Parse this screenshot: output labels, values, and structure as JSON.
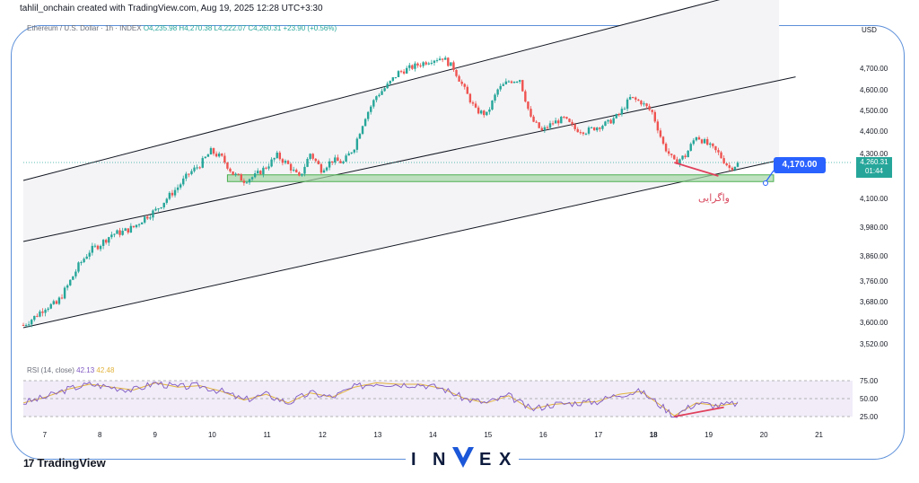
{
  "header": {
    "text": "tahlil_onchain created with TradingView.com, Aug 19, 2025 12:28 UTC+3:30"
  },
  "symbol": {
    "name": "Ethereum / U.S. Dollar · 1h · INDEX",
    "ohlc": "O4,235.98 H4,270.38 L4,222.07 C4,260.31 +23.90 (+0.56%)"
  },
  "currency": "USD",
  "rsi_label": {
    "name": "RSI (14, close)",
    "value1": "42.13",
    "value2": "42.48"
  },
  "callout_price": "4,170.00",
  "last_price": {
    "price": "4,260.31",
    "countdown": "01:44"
  },
  "annotation": "واگرایی",
  "logo": {
    "mark": "17",
    "text": "TradingView"
  },
  "watermark": [
    "I",
    "N",
    "V",
    "E",
    "X"
  ],
  "colors": {
    "up": "#26a69a",
    "down": "#ef5350",
    "channel": "#131722",
    "support": "#a5d6a7",
    "rsi": "#7e57c2",
    "rsi_ma": "#e2b33c",
    "divergence": "#e0405b",
    "callout": "#2962ff"
  },
  "chart_data": {
    "type": "candlestick",
    "x_ticks": [
      "7",
      "8",
      "9",
      "10",
      "11",
      "12",
      "13",
      "14",
      "15",
      "16",
      "17",
      "18",
      "19",
      "20",
      "21"
    ],
    "y_ticks": [
      "4,700.00",
      "4,600.00",
      "4,500.00",
      "4,400.00",
      "4,300.00",
      "4,100.00",
      "3,980.00",
      "3,860.00",
      "3,760.00",
      "3,680.00",
      "3,600.00",
      "3,520.00"
    ],
    "y_tick_values": [
      4700,
      4600,
      4500,
      4400,
      4300,
      4100,
      3980,
      3860,
      3760,
      3680,
      3600,
      3520
    ],
    "close_path": [
      [
        6.6,
        3590
      ],
      [
        6.8,
        3620
      ],
      [
        7.0,
        3660
      ],
      [
        7.2,
        3670
      ],
      [
        7.4,
        3740
      ],
      [
        7.6,
        3820
      ],
      [
        7.8,
        3880
      ],
      [
        8.0,
        3910
      ],
      [
        8.2,
        3950
      ],
      [
        8.4,
        3960
      ],
      [
        8.6,
        3980
      ],
      [
        8.8,
        4020
      ],
      [
        9.0,
        4050
      ],
      [
        9.2,
        4100
      ],
      [
        9.4,
        4150
      ],
      [
        9.6,
        4210
      ],
      [
        9.8,
        4250
      ],
      [
        10.0,
        4310
      ],
      [
        10.2,
        4280
      ],
      [
        10.4,
        4210
      ],
      [
        10.6,
        4180
      ],
      [
        10.8,
        4200
      ],
      [
        11.0,
        4240
      ],
      [
        11.2,
        4290
      ],
      [
        11.4,
        4250
      ],
      [
        11.6,
        4190
      ],
      [
        11.8,
        4300
      ],
      [
        12.0,
        4230
      ],
      [
        12.2,
        4270
      ],
      [
        12.4,
        4260
      ],
      [
        12.6,
        4330
      ],
      [
        12.8,
        4470
      ],
      [
        13.0,
        4570
      ],
      [
        13.2,
        4620
      ],
      [
        13.4,
        4680
      ],
      [
        13.6,
        4700
      ],
      [
        13.8,
        4720
      ],
      [
        14.0,
        4740
      ],
      [
        14.2,
        4750
      ],
      [
        14.4,
        4700
      ],
      [
        14.6,
        4600
      ],
      [
        14.8,
        4500
      ],
      [
        15.0,
        4480
      ],
      [
        15.2,
        4600
      ],
      [
        15.4,
        4640
      ],
      [
        15.6,
        4650
      ],
      [
        15.8,
        4460
      ],
      [
        16.0,
        4400
      ],
      [
        16.2,
        4440
      ],
      [
        16.4,
        4460
      ],
      [
        16.6,
        4410
      ],
      [
        16.8,
        4400
      ],
      [
        17.0,
        4420
      ],
      [
        17.2,
        4440
      ],
      [
        17.4,
        4480
      ],
      [
        17.6,
        4560
      ],
      [
        17.8,
        4540
      ],
      [
        18.0,
        4490
      ],
      [
        18.2,
        4340
      ],
      [
        18.4,
        4260
      ],
      [
        18.6,
        4290
      ],
      [
        18.8,
        4380
      ],
      [
        19.0,
        4340
      ],
      [
        19.2,
        4300
      ],
      [
        19.4,
        4236
      ],
      [
        19.6,
        4260
      ]
    ],
    "channel": {
      "upper": [
        [
          6.6,
          4180
        ],
        [
          20.3,
          5090
        ]
      ],
      "middle": [
        [
          6.6,
          3920
        ],
        [
          20.6,
          4660
        ]
      ],
      "lower": [
        [
          6.6,
          3580
        ],
        [
          20.3,
          4270
        ]
      ]
    },
    "support_zone": {
      "x": [
        10.3,
        20.2
      ],
      "y": [
        4175,
        4205
      ]
    },
    "divergence_price": [
      [
        18.4,
        4260
      ],
      [
        19.2,
        4200
      ]
    ],
    "rsi": {
      "ylim": [
        20,
        80
      ],
      "levels": [
        75,
        50,
        25
      ],
      "y_ticks": [
        "75.00",
        "50.00",
        "25.00"
      ],
      "divergence": [
        [
          18.4,
          25
        ],
        [
          19.3,
          38
        ]
      ],
      "values": [
        [
          6.6,
          44
        ],
        [
          7.0,
          52
        ],
        [
          7.4,
          63
        ],
        [
          7.8,
          70
        ],
        [
          8.2,
          66
        ],
        [
          8.6,
          62
        ],
        [
          9.0,
          72
        ],
        [
          9.4,
          66
        ],
        [
          9.8,
          68
        ],
        [
          10.2,
          60
        ],
        [
          10.6,
          48
        ],
        [
          11.0,
          56
        ],
        [
          11.4,
          44
        ],
        [
          11.8,
          58
        ],
        [
          12.2,
          52
        ],
        [
          12.6,
          66
        ],
        [
          13.0,
          72
        ],
        [
          13.4,
          70
        ],
        [
          13.8,
          70
        ],
        [
          14.2,
          64
        ],
        [
          14.6,
          50
        ],
        [
          15.0,
          44
        ],
        [
          15.4,
          54
        ],
        [
          15.8,
          35
        ],
        [
          16.2,
          42
        ],
        [
          16.6,
          44
        ],
        [
          17.0,
          46
        ],
        [
          17.4,
          56
        ],
        [
          17.8,
          60
        ],
        [
          18.2,
          38
        ],
        [
          18.4,
          26
        ],
        [
          18.8,
          44
        ],
        [
          19.2,
          40
        ],
        [
          19.6,
          44
        ]
      ]
    }
  }
}
